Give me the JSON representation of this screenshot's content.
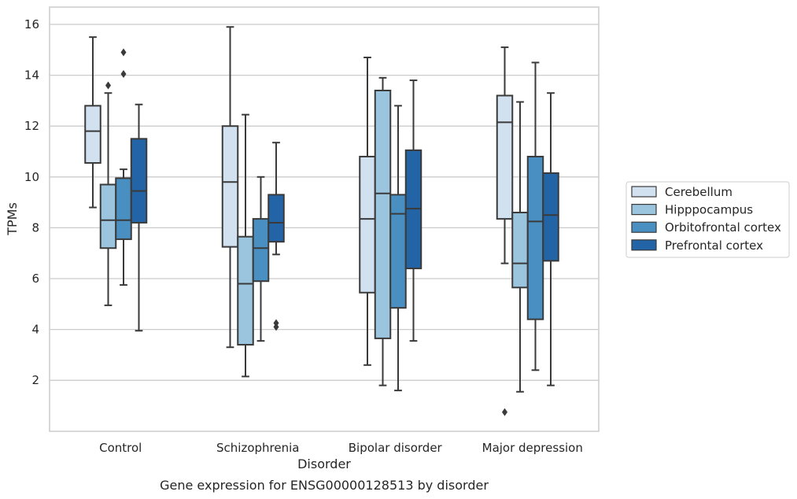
{
  "chart_data": {
    "type": "box",
    "xlabel": "Disorder",
    "ylabel": "TPMs",
    "caption": "Gene expression for ENSG00000128513 by disorder",
    "ylim": [
      0,
      16.7
    ],
    "yticks": [
      2,
      4,
      6,
      8,
      10,
      12,
      14,
      16
    ],
    "grid": "horizontal",
    "legend_placement": "center-right",
    "categories": [
      "Control",
      "Schizophrenia",
      "Bipolar disorder",
      "Major depression"
    ],
    "series": [
      {
        "name": "Cerebellum",
        "color": "#d2e1f0",
        "boxes": [
          {
            "min": 8.8,
            "q1": 10.55,
            "median": 11.8,
            "q3": 12.8,
            "max": 15.5,
            "outliers": []
          },
          {
            "min": 3.3,
            "q1": 7.25,
            "median": 9.8,
            "q3": 12.0,
            "max": 15.9,
            "outliers": []
          },
          {
            "min": 2.6,
            "q1": 5.45,
            "median": 8.35,
            "q3": 10.8,
            "max": 14.7,
            "outliers": []
          },
          {
            "min": 6.6,
            "q1": 8.35,
            "median": 12.15,
            "q3": 13.2,
            "max": 15.1,
            "outliers": [
              0.75
            ]
          }
        ]
      },
      {
        "name": "Hipppocampus",
        "color": "#9bc4de",
        "boxes": [
          {
            "min": 4.95,
            "q1": 7.2,
            "median": 8.3,
            "q3": 9.7,
            "max": 13.3,
            "outliers": [
              13.6
            ]
          },
          {
            "min": 2.15,
            "q1": 3.4,
            "median": 5.8,
            "q3": 7.65,
            "max": 12.45,
            "outliers": []
          },
          {
            "min": 1.8,
            "q1": 3.65,
            "median": 9.35,
            "q3": 13.4,
            "max": 13.9,
            "outliers": []
          },
          {
            "min": 1.55,
            "q1": 5.65,
            "median": 6.6,
            "q3": 8.6,
            "max": 12.95,
            "outliers": []
          }
        ]
      },
      {
        "name": "Orbitofrontal cortex",
        "color": "#4a8fc1",
        "boxes": [
          {
            "min": 5.75,
            "q1": 7.55,
            "median": 8.3,
            "q3": 9.95,
            "max": 10.3,
            "outliers": [
              14.05,
              14.9
            ]
          },
          {
            "min": 3.55,
            "q1": 5.9,
            "median": 7.2,
            "q3": 8.35,
            "max": 10.0,
            "outliers": []
          },
          {
            "min": 1.6,
            "q1": 4.85,
            "median": 8.55,
            "q3": 9.3,
            "max": 12.8,
            "outliers": []
          },
          {
            "min": 2.4,
            "q1": 4.4,
            "median": 8.25,
            "q3": 10.8,
            "max": 14.5,
            "outliers": []
          }
        ]
      },
      {
        "name": "Prefrontal cortex",
        "color": "#2364a6",
        "boxes": [
          {
            "min": 3.95,
            "q1": 8.2,
            "median": 9.45,
            "q3": 11.5,
            "max": 12.85,
            "outliers": []
          },
          {
            "min": 6.95,
            "q1": 7.45,
            "median": 8.2,
            "q3": 9.3,
            "max": 11.35,
            "outliers": [
              4.1,
              4.25
            ]
          },
          {
            "min": 3.55,
            "q1": 6.4,
            "median": 8.75,
            "q3": 11.05,
            "max": 13.8,
            "outliers": []
          },
          {
            "min": 1.8,
            "q1": 6.7,
            "median": 8.5,
            "q3": 10.15,
            "max": 13.3,
            "outliers": []
          }
        ]
      }
    ]
  }
}
